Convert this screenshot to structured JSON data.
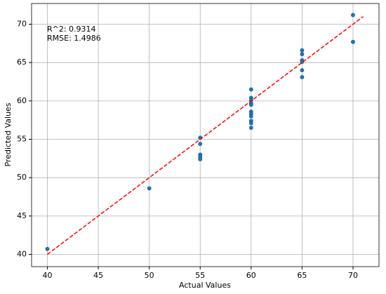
{
  "chart_data": {
    "type": "scatter",
    "xlabel": "Actual Values",
    "ylabel": "Predicted Values",
    "annotations": [
      "R^2: 0.9314",
      "RMSE: 1.4986"
    ],
    "x": [
      40,
      50,
      55,
      55,
      55,
      55,
      55,
      60,
      60,
      60,
      60,
      60,
      60,
      60,
      60,
      60,
      60,
      60,
      65,
      65,
      65,
      65,
      65,
      65,
      70,
      70
    ],
    "values": [
      40.7,
      48.6,
      55.2,
      54.4,
      53.0,
      52.7,
      52.4,
      61.5,
      60.4,
      60.1,
      59.7,
      59.5,
      58.6,
      58.3,
      58.0,
      57.4,
      57.1,
      56.5,
      66.6,
      66.1,
      65.3,
      65.1,
      64.0,
      63.1,
      71.2,
      67.7
    ],
    "color": "#1f77b4",
    "reference_line": {
      "x": [
        40,
        71
      ],
      "y": [
        40,
        71
      ],
      "color": "#ff0000"
    },
    "xlim": [
      38.45,
      72.55
    ],
    "ylim": [
      38.4,
      72.7
    ],
    "xticks": [
      40,
      45,
      50,
      55,
      60,
      65,
      70
    ],
    "yticks": [
      40,
      45,
      50,
      55,
      60,
      65,
      70
    ],
    "grid": true
  }
}
